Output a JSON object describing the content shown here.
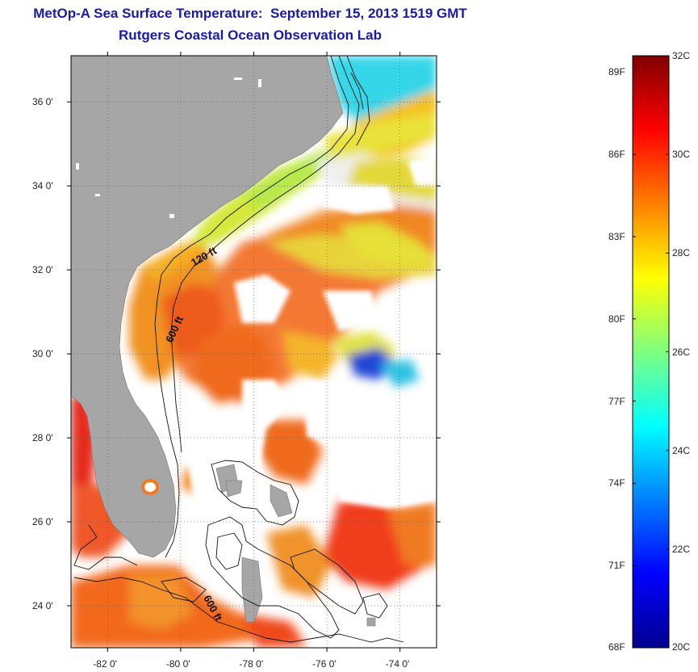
{
  "title": "MetOp-A Sea Surface Temperature:  September 15, 2013 1519 GMT",
  "subtitle": "Rutgers Coastal Ocean Observation Lab",
  "map": {
    "lon_range": [
      -83.0,
      -73.0
    ],
    "lat_range": [
      23.0,
      37.1
    ],
    "lat_ticks": [
      {
        "value": 24,
        "label": "24 0'"
      },
      {
        "value": 26,
        "label": "26 0'"
      },
      {
        "value": 28,
        "label": "28 0'"
      },
      {
        "value": 30,
        "label": "30 0'"
      },
      {
        "value": 32,
        "label": "32 0'"
      },
      {
        "value": 34,
        "label": "34 0'"
      },
      {
        "value": 36,
        "label": "36 0'"
      }
    ],
    "lon_ticks": [
      {
        "value": -82,
        "label": "-82 0'"
      },
      {
        "value": -80,
        "label": "-80 0'"
      },
      {
        "value": -78,
        "label": "-78 0'"
      },
      {
        "value": -76,
        "label": "-76 0'"
      },
      {
        "value": -74,
        "label": "-74 0'"
      }
    ],
    "contour_labels": [
      "120 ft",
      "600 ft",
      "600 ft"
    ],
    "land_color": "#a6a6a6",
    "grid": true
  },
  "colorbar": {
    "range_c": [
      20,
      32
    ],
    "celsius_labels": [
      "32C",
      "30C",
      "28C",
      "26C",
      "24C",
      "22C",
      "20C"
    ],
    "fahrenheit_labels": [
      "89F",
      "86F",
      "83F",
      "80F",
      "77F",
      "74F",
      "71F",
      "68F"
    ],
    "colormap": "jet"
  }
}
